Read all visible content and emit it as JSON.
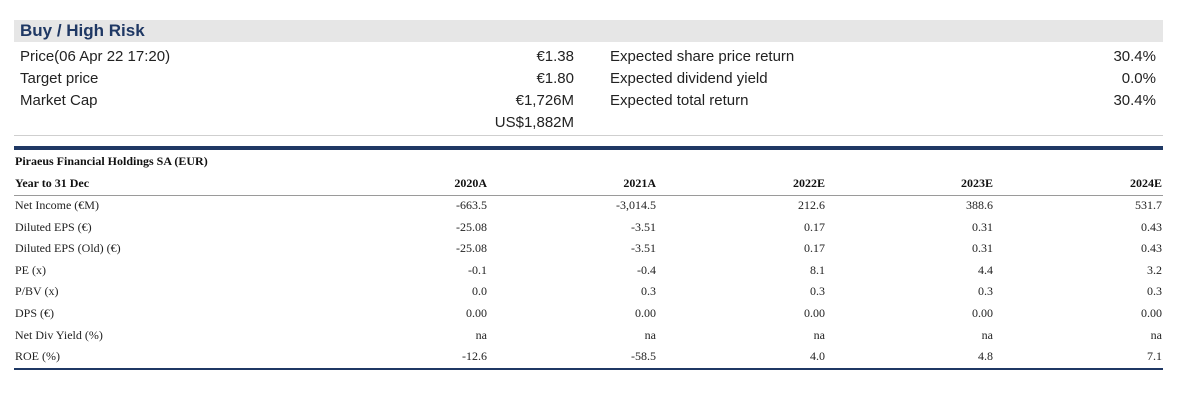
{
  "rating": "Buy / High Risk",
  "summary_left": [
    {
      "label": "Price(06 Apr 22 17:20)",
      "value": "€1.38"
    },
    {
      "label": "Target price",
      "value": "€1.80"
    },
    {
      "label": "Market Cap",
      "value": "€1,726M"
    },
    {
      "label": "",
      "value": "US$1,882M"
    }
  ],
  "summary_right": [
    {
      "label": "Expected share price return",
      "value": "30.4%"
    },
    {
      "label": "Expected dividend yield",
      "value": "0.0%"
    },
    {
      "label": "Expected total return",
      "value": "30.4%"
    }
  ],
  "financials": {
    "title": "Piraeus Financial Holdings SA (EUR)",
    "header_label": "Year to 31 Dec",
    "columns": [
      "2020A",
      "2021A",
      "2022E",
      "2023E",
      "2024E"
    ],
    "rows": [
      {
        "label": "Net Income (€M)",
        "values": [
          "-663.5",
          "-3,014.5",
          "212.6",
          "388.6",
          "531.7"
        ]
      },
      {
        "label": "Diluted EPS (€)",
        "values": [
          "-25.08",
          "-3.51",
          "0.17",
          "0.31",
          "0.43"
        ]
      },
      {
        "label": "Diluted EPS (Old) (€)",
        "values": [
          "-25.08",
          "-3.51",
          "0.17",
          "0.31",
          "0.43"
        ]
      },
      {
        "label": "PE (x)",
        "values": [
          "-0.1",
          "-0.4",
          "8.1",
          "4.4",
          "3.2"
        ]
      },
      {
        "label": "P/BV (x)",
        "values": [
          "0.0",
          "0.3",
          "0.3",
          "0.3",
          "0.3"
        ]
      },
      {
        "label": "DPS (€)",
        "values": [
          "0.00",
          "0.00",
          "0.00",
          "0.00",
          "0.00"
        ]
      },
      {
        "label": "Net Div Yield (%)",
        "values": [
          "na",
          "na",
          "na",
          "na",
          "na"
        ]
      },
      {
        "label": "ROE (%)",
        "values": [
          "-12.6",
          "-58.5",
          "4.0",
          "4.8",
          "7.1"
        ]
      }
    ]
  }
}
